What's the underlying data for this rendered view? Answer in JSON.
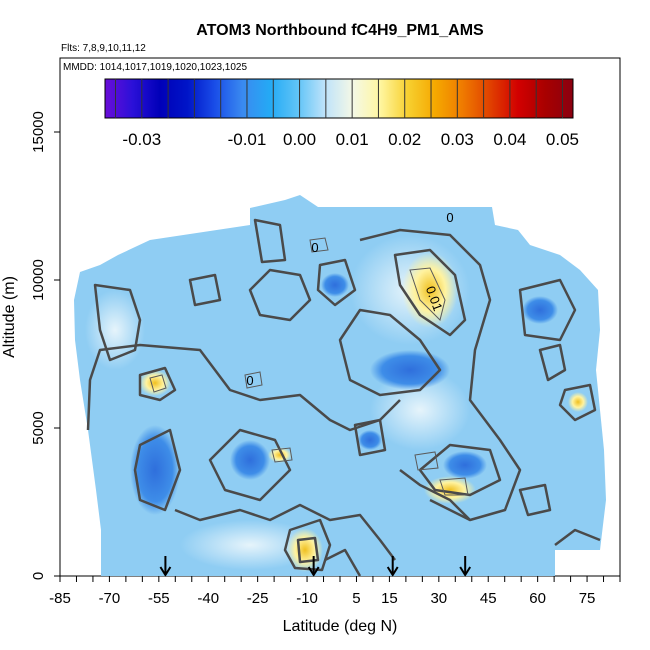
{
  "chart_data": {
    "type": "heatmap",
    "title": "ATOM3 Northbound fC4H9_PM1_AMS",
    "subtitle_flights": "Flts: 7,8,9,10,11,12",
    "subtitle_dates": "MMDD: 1014,1017,1019,1020,1023,1025",
    "xlabel": "Latitude (deg N)",
    "ylabel": "Altitude (m)",
    "xlim": [
      -85,
      85
    ],
    "ylim": [
      0,
      17500
    ],
    "x_tick_labels": [
      "-85",
      "-70",
      "-55",
      "-40",
      "-25",
      "-10",
      "5",
      "15",
      "30",
      "45",
      "60",
      "75"
    ],
    "x_ticks": [
      -85,
      -70,
      -55,
      -40,
      -25,
      -10,
      5,
      15,
      30,
      45,
      60,
      75
    ],
    "y_tick_labels": [
      "0",
      "5000",
      "10000",
      "15000"
    ],
    "y_ticks": [
      0,
      5000,
      10000,
      15000
    ],
    "colorbar": {
      "range": [
        -0.037,
        0.052
      ],
      "tick_labels": [
        "-0.03",
        "-0.01",
        "0.00",
        "0.01",
        "0.02",
        "0.03",
        "0.04",
        "0.05"
      ],
      "ticks": [
        -0.03,
        -0.01,
        0.0,
        0.01,
        0.02,
        0.03,
        0.04,
        0.05
      ],
      "colors": [
        "#6a0dd8",
        "#2b10d8",
        "#0000b8",
        "#0015c8",
        "#1a4ee8",
        "#3a8af0",
        "#24aaf5",
        "#60c4f7",
        "#bfe3fa",
        "#f4f8e6",
        "#fff6a0",
        "#f7d030",
        "#f5a800",
        "#ef7a00",
        "#e04000",
        "#d20000",
        "#a80000",
        "#8a0010"
      ]
    },
    "contour_labels": [
      "0",
      "0",
      "0",
      "0.01"
    ],
    "flight_arrows_lat": [
      -53,
      -8,
      16,
      38
    ],
    "colors": {
      "background": "#ffffff",
      "field_base": "#8fcdf3",
      "negative": "#3a86e6",
      "positive": "#fff2a0",
      "contour": "#4a4a4a"
    }
  }
}
